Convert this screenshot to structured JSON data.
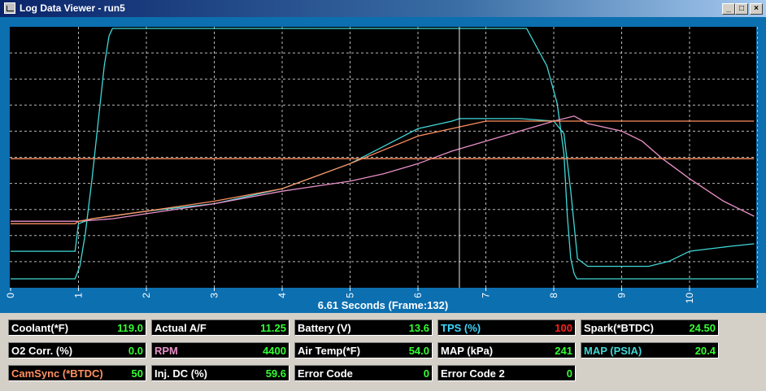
{
  "window": {
    "title": "Log Data Viewer - run5",
    "icon": "chart-app-icon",
    "buttons": {
      "minimize": "_",
      "maximize": "□",
      "close": "×"
    }
  },
  "plot": {
    "caption": "6.61 Seconds (Frame:132)",
    "grid": true,
    "cursor_time": 6.61,
    "x_ticks": [
      "0",
      "1",
      "2",
      "3",
      "4",
      "5",
      "6",
      "7",
      "8",
      "9",
      "10"
    ]
  },
  "chart_data": {
    "type": "line",
    "xlim": [
      0,
      10.95
    ],
    "ylim": [
      0,
      100
    ],
    "series": [
      {
        "key": "tps",
        "color": "#40d8d8",
        "x": [
          0,
          0.95,
          1.02,
          1.1,
          1.2,
          1.3,
          1.38,
          1.45,
          1.5,
          2,
          7.2,
          7.6,
          7.9,
          8.05,
          8.15,
          8.2,
          8.25,
          8.3,
          8.34,
          8.5,
          10.95
        ],
        "y": [
          0,
          0,
          5,
          18,
          40,
          65,
          85,
          97,
          100,
          100,
          100,
          100,
          85,
          70,
          50,
          25,
          8,
          2,
          0,
          0,
          0
        ]
      },
      {
        "key": "map_psia",
        "color": "#40d8d8",
        "x": [
          0,
          0.95,
          1.0,
          1.2,
          2,
          3,
          4,
          4.5,
          5,
          5.5,
          6,
          6.5,
          6.61,
          7,
          7.5,
          8,
          8.15,
          8.25,
          8.35,
          8.5,
          9,
          9.4,
          9.7,
          10,
          10.3,
          10.6,
          10.95
        ],
        "y": [
          11,
          11,
          22,
          24,
          27,
          30,
          36,
          41,
          46,
          53,
          60,
          63,
          64,
          64,
          64,
          63,
          58,
          35,
          8,
          5,
          5,
          5,
          7,
          11,
          12,
          13,
          14
        ]
      },
      {
        "key": "rpm",
        "color": "#e890c8",
        "x": [
          0,
          1,
          1.5,
          2,
          3,
          4,
          4.5,
          5,
          5.5,
          6,
          6.5,
          7,
          7.5,
          8,
          8.3,
          8.5,
          9,
          9.3,
          9.6,
          10,
          10.5,
          10.95
        ],
        "y": [
          23,
          23,
          24,
          26,
          30,
          35,
          37,
          39,
          42,
          46,
          51,
          55,
          59,
          63,
          65,
          62,
          59,
          55,
          48,
          40,
          31,
          25
        ]
      },
      {
        "key": "actual_af",
        "color": "#ff9060",
        "x": [
          0,
          1,
          5,
          6,
          6.5,
          6.61,
          7,
          7.3,
          7.8,
          8.2,
          8.4,
          9,
          10,
          10.95
        ],
        "y": [
          48,
          48,
          48,
          48,
          48,
          48,
          48,
          48,
          48,
          48,
          48,
          48,
          48,
          48
        ]
      },
      {
        "key": "spark",
        "color": "#ff9060",
        "x": [
          0,
          0.95,
          1.0,
          1.2,
          2,
          3,
          4,
          5,
          6,
          7,
          8,
          8.3,
          9,
          10,
          10.95
        ],
        "y": [
          22,
          22,
          23,
          24,
          27,
          31,
          36,
          46,
          57,
          63,
          63,
          63,
          63,
          63,
          63
        ]
      }
    ]
  },
  "readouts": [
    {
      "label": "Coolant(*F)",
      "value": "119.0",
      "label_color": "#ffffff",
      "value_color": "#33ff33"
    },
    {
      "label": "Actual A/F",
      "value": "11.25",
      "label_color": "#ffffff",
      "value_color": "#33ff33"
    },
    {
      "label": "Battery (V)",
      "value": "13.6",
      "label_color": "#ffffff",
      "value_color": "#33ff33"
    },
    {
      "label": "TPS (%)",
      "value": "100",
      "label_color": "#40d8ff",
      "value_color": "#ff2020"
    },
    {
      "label": "Spark(*BTDC)",
      "value": "24.50",
      "label_color": "#ffffff",
      "value_color": "#33ff33"
    },
    {
      "label": "O2 Corr. (%)",
      "value": "0.0",
      "label_color": "#ffffff",
      "value_color": "#33ff33"
    },
    {
      "label": "RPM",
      "value": "4400",
      "label_color": "#e890c8",
      "value_color": "#33ff33"
    },
    {
      "label": "Air Temp(*F)",
      "value": "54.0",
      "label_color": "#ffffff",
      "value_color": "#33ff33"
    },
    {
      "label": "MAP (kPa)",
      "value": "241",
      "label_color": "#ffffff",
      "value_color": "#33ff33"
    },
    {
      "label": "MAP (PSIA)",
      "value": "20.4",
      "label_color": "#40d8d8",
      "value_color": "#33ff33"
    },
    {
      "label": "CamSync (*BTDC)",
      "value": "50",
      "label_color": "#ff9060",
      "value_color": "#33ff33"
    },
    {
      "label": "Inj. DC (%)",
      "value": "59.6",
      "label_color": "#ffffff",
      "value_color": "#33ff33"
    },
    {
      "label": "Error Code",
      "value": "0",
      "label_color": "#ffffff",
      "value_color": "#33ff33"
    },
    {
      "label": "Error Code 2",
      "value": "0",
      "label_color": "#ffffff",
      "value_color": "#33ff33"
    }
  ]
}
